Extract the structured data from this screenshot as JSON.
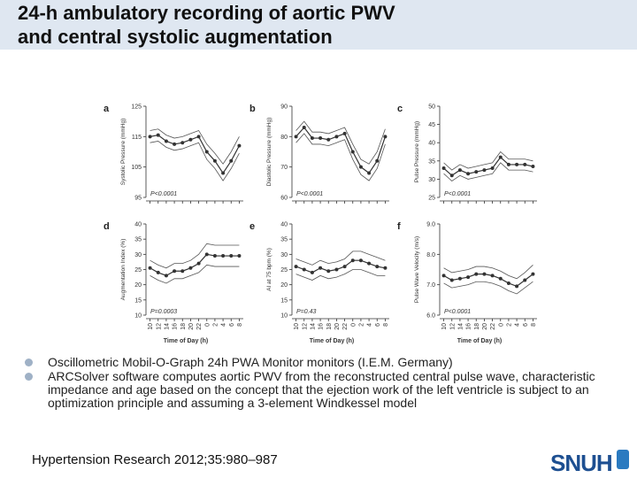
{
  "title": [
    "24-h ambulatory recording of aortic PWV",
    "and central systolic augmentation"
  ],
  "chart_data": [
    {
      "type": "line",
      "label": "a",
      "ylabel": "Systolic Pressure (mmHg)",
      "annotation": "P<0.0001",
      "categories": [
        null,
        null,
        null,
        null,
        null,
        null,
        null,
        null,
        null,
        null,
        null,
        null
      ],
      "ylim": [
        95,
        125
      ],
      "yticks": [
        95,
        105,
        115,
        125
      ],
      "series": [
        {
          "color": "#333333",
          "values": [
            115,
            115.5,
            113.5,
            112.5,
            113,
            114,
            115,
            110,
            107,
            103,
            107,
            112
          ]
        },
        {
          "color": "#555555",
          "values": [
            117,
            117.5,
            115.5,
            114.5,
            115,
            116,
            117,
            112.5,
            109.5,
            106,
            110,
            115
          ]
        },
        {
          "color": "#555555",
          "values": [
            113,
            113.5,
            111.5,
            110.5,
            111,
            112,
            113,
            107.5,
            104.5,
            100.5,
            104.5,
            109.5
          ]
        }
      ]
    },
    {
      "type": "line",
      "label": "b",
      "ylabel": "Diastolic Pressure (mmHg)",
      "annotation": "P<0.0001",
      "categories": [
        null,
        null,
        null,
        null,
        null,
        null,
        null,
        null,
        null,
        null,
        null,
        null
      ],
      "ylim": [
        60,
        90
      ],
      "yticks": [
        60,
        70,
        80,
        90
      ],
      "series": [
        {
          "color": "#333333",
          "values": [
            80,
            83,
            79.5,
            79.5,
            79,
            80,
            81,
            75,
            70,
            68,
            72,
            80
          ]
        },
        {
          "color": "#555555",
          "values": [
            82,
            85,
            81.5,
            81.5,
            81,
            82,
            83,
            77.5,
            72.5,
            71,
            75,
            82.5
          ]
        },
        {
          "color": "#555555",
          "values": [
            78,
            81,
            77.5,
            77.5,
            77,
            78,
            79,
            72.5,
            67.5,
            65.5,
            69.5,
            77.5
          ]
        }
      ]
    },
    {
      "type": "line",
      "label": "c",
      "ylabel": "Pulse Pressure (mmHg)",
      "annotation": "P<0.0001",
      "categories": [
        null,
        null,
        null,
        null,
        null,
        null,
        null,
        null,
        null,
        null,
        null,
        null
      ],
      "ylim": [
        25,
        50
      ],
      "yticks": [
        25,
        30,
        35,
        40,
        45,
        50
      ],
      "series": [
        {
          "color": "#333333",
          "values": [
            33,
            31,
            32.5,
            31.5,
            32,
            32.5,
            33,
            36,
            34,
            34,
            34,
            33.5
          ]
        },
        {
          "color": "#555555",
          "values": [
            34.5,
            32.5,
            34,
            33,
            33.5,
            34,
            34.5,
            37.5,
            35.5,
            35.5,
            35.5,
            35
          ]
        },
        {
          "color": "#555555",
          "values": [
            31.5,
            29.5,
            31,
            30,
            30.5,
            31,
            31.5,
            34.5,
            32.5,
            32.5,
            32.5,
            32
          ]
        }
      ]
    },
    {
      "type": "line",
      "label": "d",
      "ylabel": "Augmentation Index (%)",
      "annotation": "P=0.0003",
      "xlabel": "Time of Day (h)",
      "categories": [
        "10",
        "12",
        "14",
        "16",
        "18",
        "20",
        "22",
        "0",
        "2",
        "4",
        "6",
        "8"
      ],
      "ylim": [
        10,
        40
      ],
      "yticks": [
        10,
        15,
        20,
        25,
        30,
        35,
        40
      ],
      "series": [
        {
          "color": "#333333",
          "values": [
            25.5,
            24,
            23,
            24.5,
            24.5,
            25.5,
            27,
            30,
            29.5,
            29.5,
            29.5,
            29.5
          ]
        },
        {
          "color": "#555555",
          "values": [
            28,
            26.5,
            25.5,
            27,
            27,
            28,
            30,
            33.5,
            33,
            33,
            33,
            33
          ]
        },
        {
          "color": "#555555",
          "values": [
            23,
            21.5,
            20.5,
            22,
            22,
            23,
            24,
            26.5,
            26,
            26,
            26,
            26
          ]
        }
      ]
    },
    {
      "type": "line",
      "label": "e",
      "ylabel": "AI at 75 bpm (%)",
      "annotation": "P=0.43",
      "xlabel": "Time of Day (h)",
      "categories": [
        "10",
        "12",
        "14",
        "16",
        "18",
        "20",
        "22",
        "0",
        "2",
        "4",
        "6",
        "8"
      ],
      "ylim": [
        10,
        40
      ],
      "yticks": [
        10,
        15,
        20,
        25,
        30,
        35,
        40
      ],
      "series": [
        {
          "color": "#333333",
          "values": [
            26,
            25,
            24,
            25.5,
            24.5,
            25,
            26,
            28,
            28,
            27,
            26,
            25.5
          ]
        },
        {
          "color": "#555555",
          "values": [
            28.5,
            27.5,
            26.5,
            28,
            27,
            27.5,
            28.5,
            31,
            31,
            30,
            29,
            28
          ]
        },
        {
          "color": "#555555",
          "values": [
            23.5,
            22.5,
            21.5,
            23,
            22,
            22.5,
            23.5,
            25,
            25,
            24,
            23,
            23
          ]
        }
      ]
    },
    {
      "type": "line",
      "label": "f",
      "ylabel": "Pulse Wave Velocity (m/s)",
      "annotation": "P<0.0001",
      "xlabel": "Time of Day (h)",
      "categories": [
        "10",
        "12",
        "14",
        "16",
        "18",
        "20",
        "22",
        "0",
        "2",
        "4",
        "6",
        "8"
      ],
      "ylim": [
        6,
        9
      ],
      "yticks": [
        {
          "value": 6,
          "label": "6.0"
        },
        {
          "value": 7,
          "label": "7.0"
        },
        {
          "value": 8,
          "label": "8.0"
        },
        {
          "value": 9,
          "label": "9.0"
        }
      ],
      "series": [
        {
          "color": "#333333",
          "values": [
            7.3,
            7.15,
            7.2,
            7.25,
            7.35,
            7.35,
            7.3,
            7.2,
            7.05,
            6.95,
            7.15,
            7.35
          ]
        },
        {
          "color": "#555555",
          "values": [
            7.55,
            7.4,
            7.45,
            7.5,
            7.6,
            7.6,
            7.55,
            7.45,
            7.3,
            7.2,
            7.4,
            7.65
          ]
        },
        {
          "color": "#555555",
          "values": [
            7.05,
            6.9,
            6.95,
            7.0,
            7.1,
            7.1,
            7.05,
            6.95,
            6.8,
            6.7,
            6.9,
            7.1
          ]
        }
      ]
    }
  ],
  "bullets": [
    "Oscillometric Mobil-O-Graph 24h PWA Monitor monitors (I.E.M. Germany)",
    "ARCSolver software computes aortic PWV from the reconstructed central pulse wave, characteristic impedance and age based on the concept that the ejection work of the left ventricle is subject to an optimization principle and assuming a 3-element Windkessel model"
  ],
  "citation": "Hypertension Research 2012;35:980–987",
  "logo": "SNUH"
}
